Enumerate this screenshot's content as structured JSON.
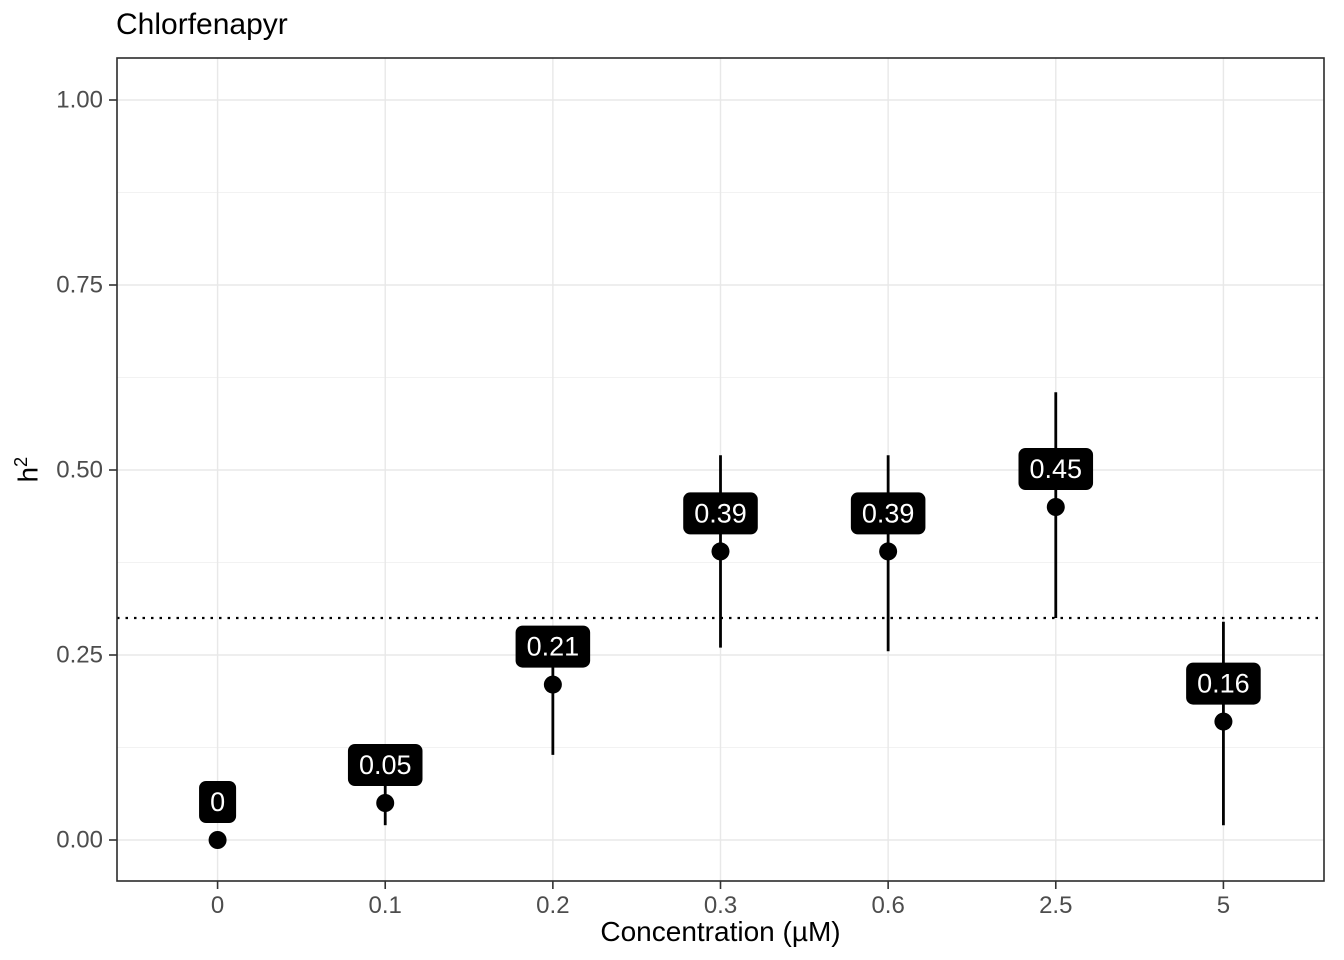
{
  "chart_data": {
    "type": "scatter",
    "title": "Chlorfenapyr",
    "xlabel": "Concentration (µM)",
    "ylabel_base": "h",
    "ylabel_sup": "2",
    "categories": [
      "0",
      "0.1",
      "0.2",
      "0.3",
      "0.6",
      "2.5",
      "5"
    ],
    "values": [
      0,
      0.05,
      0.21,
      0.39,
      0.39,
      0.45,
      0.16
    ],
    "labels": [
      "0",
      "0.05",
      "0.21",
      "0.39",
      "0.39",
      "0.45",
      "0.16"
    ],
    "error_low": [
      0,
      0.02,
      0.115,
      0.26,
      0.255,
      0.3,
      0.02
    ],
    "error_high": [
      0,
      0.1,
      0.27,
      0.52,
      0.52,
      0.605,
      0.295
    ],
    "hline": 0.3,
    "ylim": [
      0,
      1
    ],
    "yticks": [
      0,
      0.25,
      0.5,
      0.75,
      1
    ],
    "ytick_labels": [
      "0.00",
      "0.25",
      "0.50",
      "0.75",
      "1.00"
    ],
    "grid": true,
    "legend": "none",
    "point_color": "#000000",
    "label_bg": "#000000",
    "label_fg": "#ffffff",
    "grid_major_color": "#e8e8e8",
    "grid_minor_color": "#f2f2f2",
    "panel_border_color": "#2b2b2b",
    "tick_label_color": "#4d4d4d"
  }
}
